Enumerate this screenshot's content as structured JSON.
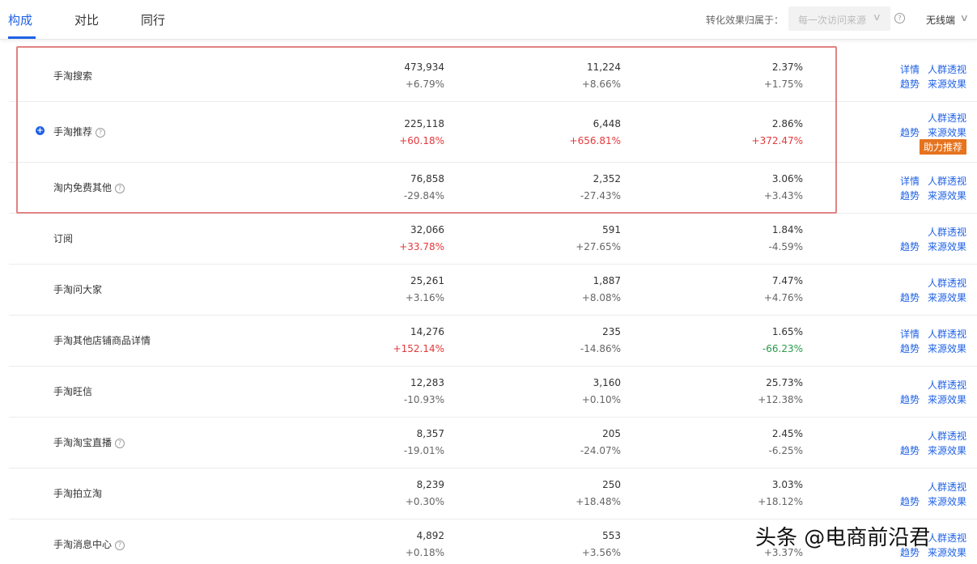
{
  "tabs": [
    {
      "label": "构成",
      "active": true
    },
    {
      "label": "对比",
      "active": false
    },
    {
      "label": "同行",
      "active": false
    }
  ],
  "filter": {
    "label": "转化效果归属于：",
    "select_value": "每一次访问来源",
    "device": "无线端"
  },
  "colors": {
    "accent": "#2062e6",
    "up": "#e4393c",
    "down": "#2a9a4a",
    "badge": "#e6731e",
    "highlight": "#e08282"
  },
  "rows": [
    {
      "name": "手淘搜索",
      "help": false,
      "expand": false,
      "v1": "473,934",
      "d1": "+6.79%",
      "v2": "11,224",
      "d2": "+8.66%",
      "v3": "2.37%",
      "d3": "+1.75%",
      "links": [
        "详情",
        "人群透视",
        "趋势",
        "来源效果"
      ]
    },
    {
      "name": "手淘推荐",
      "help": true,
      "expand": true,
      "v1": "225,118",
      "d1": "+60.18%",
      "v2": "6,448",
      "d2": "+656.81%",
      "v3": "2.86%",
      "d3": "+372.47%",
      "links": [
        "人群透视",
        "趋势",
        "来源效果"
      ],
      "badge": "助力推荐"
    },
    {
      "name": "淘内免费其他",
      "help": true,
      "expand": false,
      "v1": "76,858",
      "d1": "-29.84%",
      "v2": "2,352",
      "d2": "-27.43%",
      "v3": "3.06%",
      "d3": "+3.43%",
      "links": [
        "详情",
        "人群透视",
        "趋势",
        "来源效果"
      ]
    },
    {
      "name": "订阅",
      "help": false,
      "expand": false,
      "v1": "32,066",
      "d1": "+33.78%",
      "v2": "591",
      "d2": "+27.65%",
      "v3": "1.84%",
      "d3": "-4.59%",
      "links": [
        "人群透视",
        "趋势",
        "来源效果"
      ]
    },
    {
      "name": "手淘问大家",
      "help": false,
      "expand": false,
      "v1": "25,261",
      "d1": "+3.16%",
      "v2": "1,887",
      "d2": "+8.08%",
      "v3": "7.47%",
      "d3": "+4.76%",
      "links": [
        "人群透视",
        "趋势",
        "来源效果"
      ]
    },
    {
      "name": "手淘其他店铺商品详情",
      "help": false,
      "expand": false,
      "v1": "14,276",
      "d1": "+152.14%",
      "v2": "235",
      "d2": "-14.86%",
      "v3": "1.65%",
      "d3": "-66.23%",
      "links": [
        "详情",
        "人群透视",
        "趋势",
        "来源效果"
      ]
    },
    {
      "name": "手淘旺信",
      "help": false,
      "expand": false,
      "v1": "12,283",
      "d1": "-10.93%",
      "v2": "3,160",
      "d2": "+0.10%",
      "v3": "25.73%",
      "d3": "+12.38%",
      "links": [
        "人群透视",
        "趋势",
        "来源效果"
      ]
    },
    {
      "name": "手淘淘宝直播",
      "help": true,
      "expand": false,
      "v1": "8,357",
      "d1": "-19.01%",
      "v2": "205",
      "d2": "-24.07%",
      "v3": "2.45%",
      "d3": "-6.25%",
      "links": [
        "人群透视",
        "趋势",
        "来源效果"
      ]
    },
    {
      "name": "手淘拍立淘",
      "help": false,
      "expand": false,
      "v1": "8,239",
      "d1": "+0.30%",
      "v2": "250",
      "d2": "+18.48%",
      "v3": "3.03%",
      "d3": "+18.12%",
      "links": [
        "人群透视",
        "趋势",
        "来源效果"
      ]
    },
    {
      "name": "手淘消息中心",
      "help": true,
      "expand": false,
      "v1": "4,892",
      "d1": "+0.18%",
      "v2": "553",
      "d2": "+3.56%",
      "v3": "",
      "d3": "+3.37%",
      "links": [
        "人群透视",
        "趋势",
        "来源效果"
      ]
    }
  ],
  "watermark": "头条 @电商前沿君"
}
